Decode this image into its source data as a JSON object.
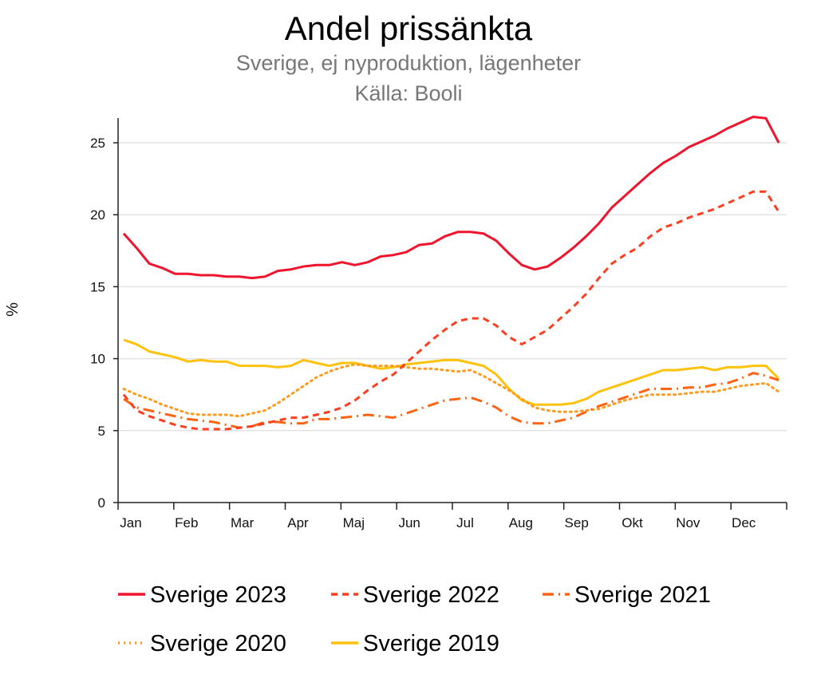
{
  "chart_data": {
    "type": "line",
    "title": "Andel prissänkta",
    "subtitle": "Sverige, ej nyproduktion, lägenheter",
    "source": "Källa: Booli",
    "xlabel": "",
    "ylabel": "%",
    "ylim": [
      0,
      27
    ],
    "yticks": [
      0,
      5,
      10,
      15,
      20,
      25
    ],
    "grid": true,
    "legend_position": "bottom",
    "x_tick_labels": [
      "Jan",
      "Feb",
      "Mar",
      "Apr",
      "Maj",
      "Jun",
      "Jul",
      "Aug",
      "Sep",
      "Okt",
      "Nov",
      "Dec"
    ],
    "x_unit_note": "weeks 1-52",
    "series": [
      {
        "name": "Sverige 2023",
        "color": "#f0142d",
        "style": "solid",
        "values": [
          18.7,
          17.7,
          16.6,
          16.3,
          15.9,
          15.9,
          15.8,
          15.8,
          15.7,
          15.7,
          15.6,
          15.7,
          16.1,
          16.2,
          16.4,
          16.5,
          16.5,
          16.7,
          16.5,
          16.7,
          17.1,
          17.2,
          17.4,
          17.9,
          18.0,
          18.5,
          18.8,
          18.8,
          18.7,
          18.2,
          17.3,
          16.5,
          16.2,
          16.4,
          17.0,
          17.7,
          18.5,
          19.4,
          20.5,
          21.3,
          22.1,
          22.9,
          23.6,
          24.1,
          24.7,
          25.1,
          25.5,
          26.0,
          26.4,
          26.8,
          26.7,
          25.0
        ]
      },
      {
        "name": "Sverige 2022",
        "color": "#ff3d1f",
        "style": "dashed",
        "values": [
          7.5,
          6.4,
          6.0,
          5.7,
          5.4,
          5.2,
          5.1,
          5.1,
          5.1,
          5.2,
          5.3,
          5.5,
          5.7,
          5.9,
          5.9,
          6.1,
          6.3,
          6.6,
          7.1,
          7.8,
          8.4,
          8.9,
          9.7,
          10.5,
          11.3,
          12.0,
          12.6,
          12.8,
          12.8,
          12.3,
          11.5,
          11.0,
          11.5,
          12.0,
          12.8,
          13.6,
          14.5,
          15.6,
          16.6,
          17.2,
          17.7,
          18.5,
          19.1,
          19.4,
          19.8,
          20.1,
          20.4,
          20.8,
          21.2,
          21.6,
          21.6,
          20.2
        ]
      },
      {
        "name": "Sverige 2021",
        "color": "#ff6414",
        "style": "dashdot",
        "values": [
          7.2,
          6.6,
          6.4,
          6.2,
          6.0,
          5.8,
          5.7,
          5.6,
          5.4,
          5.2,
          5.3,
          5.6,
          5.6,
          5.5,
          5.5,
          5.8,
          5.8,
          5.9,
          6.0,
          6.1,
          6.0,
          5.9,
          6.2,
          6.5,
          6.8,
          7.1,
          7.2,
          7.3,
          7.0,
          6.6,
          6.0,
          5.6,
          5.5,
          5.5,
          5.7,
          5.9,
          6.3,
          6.7,
          7.0,
          7.3,
          7.6,
          7.9,
          7.9,
          7.9,
          8.0,
          8.0,
          8.2,
          8.3,
          8.6,
          9.0,
          8.8,
          8.5
        ]
      },
      {
        "name": "Sverige 2020",
        "color": "#ff9a1e",
        "style": "dotted",
        "values": [
          7.9,
          7.5,
          7.2,
          6.8,
          6.5,
          6.2,
          6.1,
          6.1,
          6.1,
          6.0,
          6.2,
          6.4,
          6.9,
          7.5,
          8.1,
          8.7,
          9.1,
          9.4,
          9.6,
          9.5,
          9.5,
          9.5,
          9.4,
          9.3,
          9.3,
          9.2,
          9.1,
          9.2,
          8.8,
          8.3,
          7.8,
          7.2,
          6.6,
          6.4,
          6.3,
          6.3,
          6.4,
          6.5,
          6.8,
          7.1,
          7.3,
          7.5,
          7.5,
          7.5,
          7.6,
          7.7,
          7.7,
          7.9,
          8.1,
          8.2,
          8.3,
          7.7
        ]
      },
      {
        "name": "Sverige 2019",
        "color": "#ffc20e",
        "style": "solid",
        "values": [
          11.3,
          11.0,
          10.5,
          10.3,
          10.1,
          9.8,
          9.9,
          9.8,
          9.8,
          9.5,
          9.5,
          9.5,
          9.4,
          9.5,
          9.9,
          9.7,
          9.5,
          9.7,
          9.7,
          9.5,
          9.3,
          9.4,
          9.6,
          9.7,
          9.8,
          9.9,
          9.9,
          9.7,
          9.5,
          8.9,
          7.9,
          7.1,
          6.8,
          6.8,
          6.8,
          6.9,
          7.2,
          7.7,
          8.0,
          8.3,
          8.6,
          8.9,
          9.2,
          9.2,
          9.3,
          9.4,
          9.2,
          9.4,
          9.4,
          9.5,
          9.5,
          8.6
        ]
      }
    ]
  }
}
